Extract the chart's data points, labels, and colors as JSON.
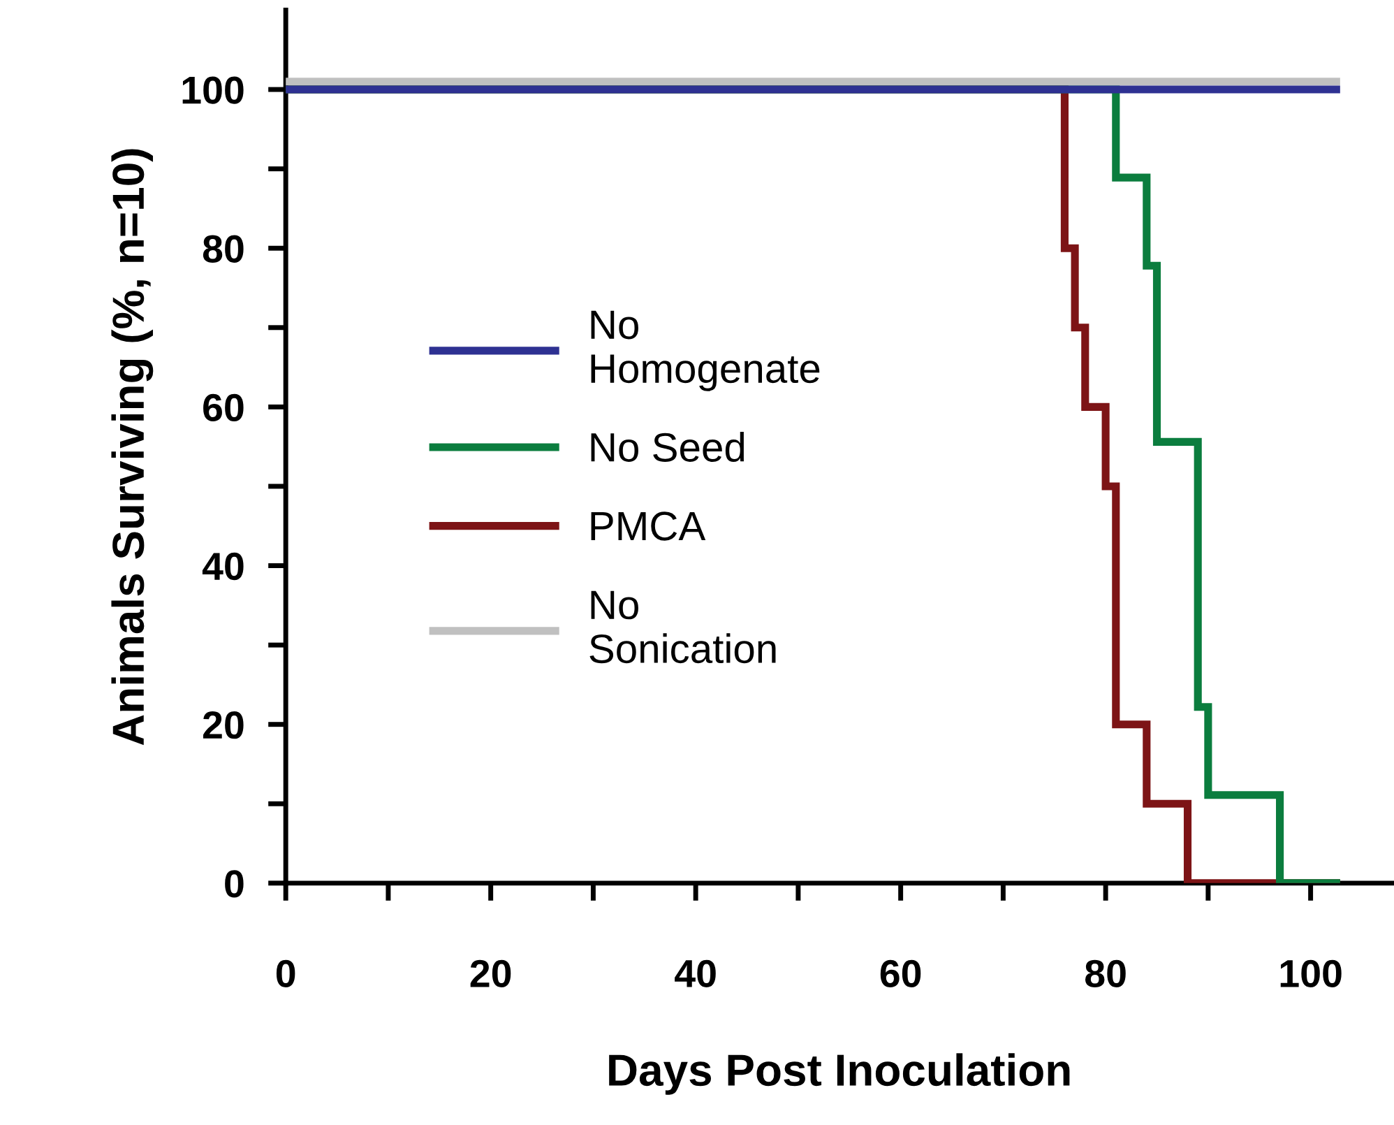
{
  "chart_data": {
    "type": "step",
    "xlabel": "Days Post Inoculation",
    "ylabel": "Animals Surviving (%, n=10)",
    "xlim": [
      0,
      108
    ],
    "ylim": [
      0,
      110
    ],
    "xticks": [
      0,
      {
        "value": 10,
        "label": null
      },
      20,
      {
        "value": 30,
        "label": null
      },
      40,
      {
        "value": 50,
        "label": null
      },
      60,
      {
        "value": 70,
        "label": null
      },
      80,
      {
        "value": 90,
        "label": null
      },
      100
    ],
    "yticks": [
      0,
      {
        "value": 10,
        "label": null
      },
      20,
      {
        "value": 30,
        "label": null
      },
      40,
      {
        "value": 50,
        "label": null
      },
      60,
      {
        "value": 70,
        "label": null
      },
      80,
      {
        "value": 90,
        "label": null
      },
      100
    ],
    "grid": false,
    "legend": "left",
    "marker": "none",
    "line_style": "solid",
    "series": [
      {
        "name": "No Homogenate",
        "color": "#2e3192",
        "x": [
          0,
          102.5
        ],
        "values": [
          100,
          100
        ]
      },
      {
        "name": "No Seed",
        "color": "#0b7d3e",
        "x": [
          0,
          81,
          84,
          85,
          89,
          90,
          97,
          102.5
        ],
        "values": [
          100,
          88.9,
          77.8,
          55.6,
          22.2,
          11.1,
          0,
          0
        ]
      },
      {
        "name": "PMCA",
        "color": "#7d1416",
        "x": [
          0,
          76,
          77,
          78,
          80,
          81,
          84,
          88,
          102.5
        ],
        "values": [
          100,
          80,
          70,
          60,
          50,
          20,
          10,
          0,
          0
        ]
      },
      {
        "name": "No Sonication",
        "color": "#c0c0c0",
        "x": [
          0,
          102.5
        ],
        "values": [
          101,
          101
        ]
      }
    ]
  }
}
